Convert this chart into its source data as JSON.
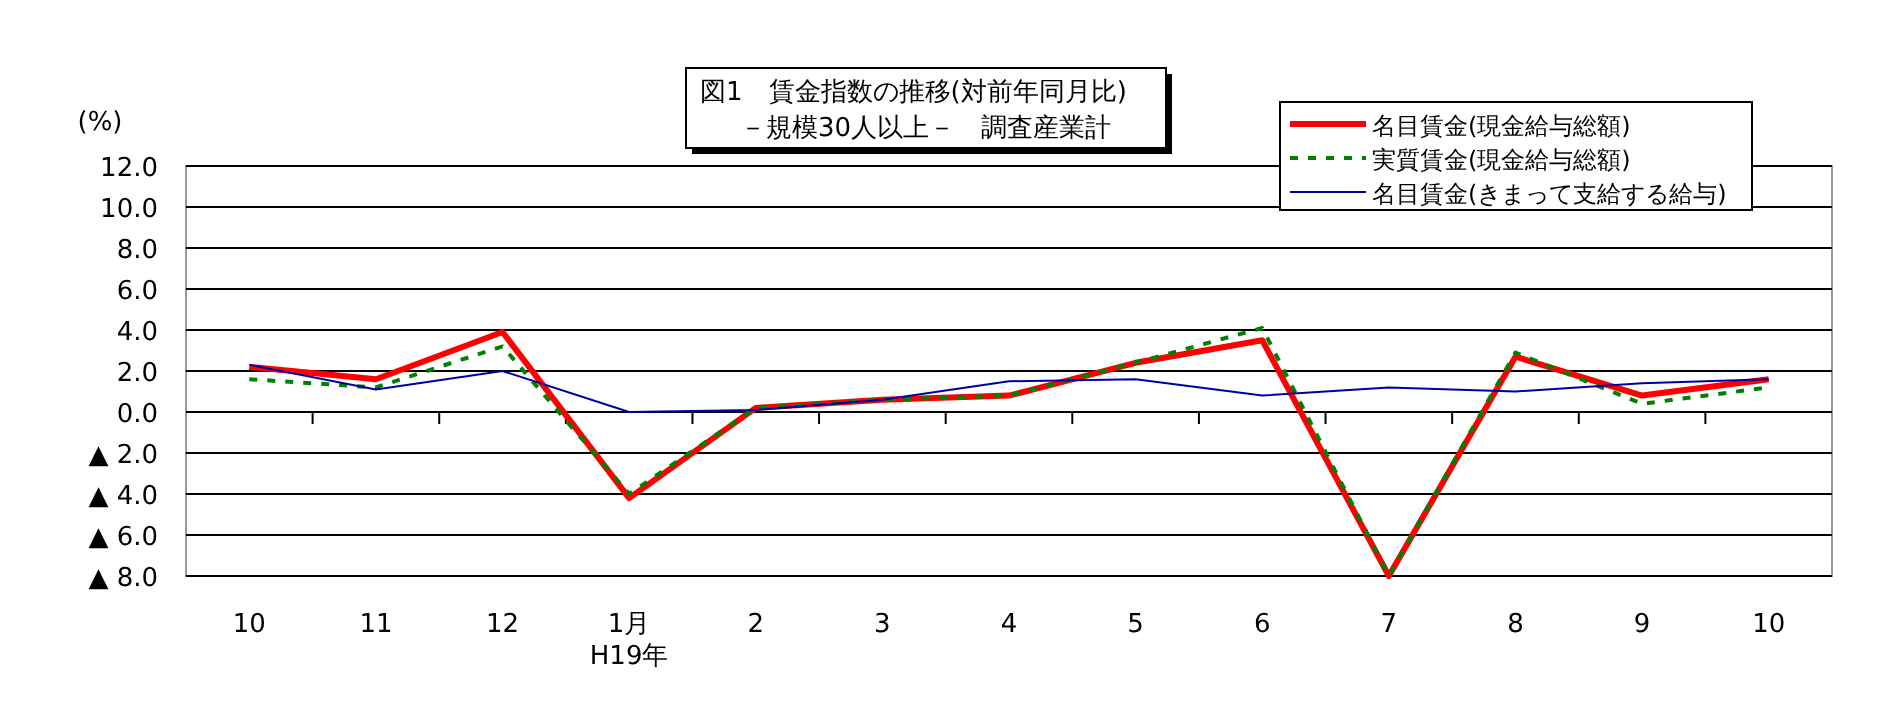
{
  "chart_data": {
    "type": "line",
    "title": "図1　賃金指数の推移(対前年同月比)",
    "subtitle": "－規模30人以上－　調査産業計",
    "ylabel": "(%)",
    "categories": [
      "10",
      "11",
      "12",
      "1月\nH19年",
      "2",
      "3",
      "4",
      "5",
      "6",
      "7",
      "8",
      "9",
      "10"
    ],
    "ylim": [
      -8,
      12
    ],
    "yticks": [
      {
        "value": -8,
        "label": "▲ 8.0"
      },
      {
        "value": -6,
        "label": "▲ 6.0"
      },
      {
        "value": -4,
        "label": "▲ 4.0"
      },
      {
        "value": -2,
        "label": "▲ 2.0"
      },
      {
        "value": 0,
        "label": "0.0"
      },
      {
        "value": 2,
        "label": "2.0"
      },
      {
        "value": 4,
        "label": "4.0"
      },
      {
        "value": 6,
        "label": "6.0"
      },
      {
        "value": 8,
        "label": "8.0"
      },
      {
        "value": 10,
        "label": "10.0"
      },
      {
        "value": 12,
        "label": "12.0"
      }
    ],
    "grid": "y",
    "legend": "top right",
    "marker": "none",
    "series": [
      {
        "name": "名目賃金(現金給与総額)",
        "color": "#ff0000",
        "line_style": "solid",
        "values": [
          2.2,
          1.6,
          3.9,
          -4.2,
          0.2,
          0.6,
          0.8,
          2.4,
          3.5,
          -8.0,
          2.7,
          0.8,
          1.6
        ]
      },
      {
        "name": "実質賃金(現金給与総額)",
        "color": "#008000",
        "line_style": "dashed",
        "values": [
          1.6,
          1.2,
          3.2,
          -4.0,
          0.2,
          0.6,
          0.8,
          2.4,
          4.1,
          -8.0,
          2.9,
          0.4,
          1.2
        ]
      },
      {
        "name": "名目賃金(きまって支給する給与)",
        "color": "#0000a0",
        "line_style": "solid",
        "values": [
          2.3,
          1.1,
          2.0,
          0.0,
          0.1,
          0.6,
          1.5,
          1.6,
          0.8,
          1.2,
          1.0,
          1.4,
          1.6
        ]
      }
    ]
  }
}
